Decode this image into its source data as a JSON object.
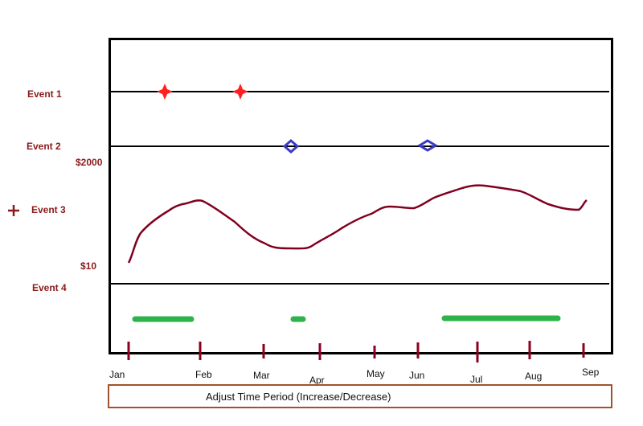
{
  "events": [
    {
      "label": "Event 1"
    },
    {
      "label": "Event 2"
    },
    {
      "label": "Event 3"
    },
    {
      "label": "Event 4"
    }
  ],
  "icons": {
    "add": "plus-icon"
  },
  "value_axis": {
    "high_label": "$2000",
    "low_label": "$10"
  },
  "months": [
    "Jan",
    "Feb",
    "Mar",
    "Apr",
    "May",
    "Jun",
    "Jul",
    "Aug",
    "Sep"
  ],
  "adjust_button": {
    "label": "Adjust Time Period (Increase/Decrease)"
  },
  "colors": {
    "event1_marker": "#ff2020",
    "event2_marker": "#3a3ac8",
    "event3_line": "#800020",
    "event4_bar": "#2db34a",
    "labels": "#8b1a1a",
    "ticks": "#8b0020"
  },
  "chart_data": {
    "type": "line",
    "x": [
      "Jan",
      "Feb",
      "Mar",
      "Apr",
      "May",
      "Jun",
      "Jul",
      "Aug",
      "Sep"
    ],
    "series": [
      {
        "values": [
          110,
          1250,
          400,
          520,
          1100,
          1200,
          1480,
          1150,
          1250
        ]
      }
    ],
    "ylim": [
      10,
      2000
    ]
  }
}
